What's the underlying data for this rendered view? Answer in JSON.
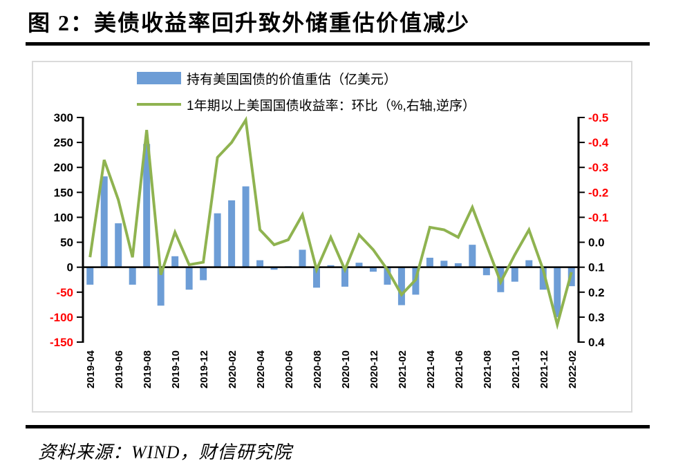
{
  "header": {
    "title": "图 2：美债收益率回升致外储重估价值减少"
  },
  "legend": {
    "bar_label": "持有美国国债的价值重估（亿美元）",
    "line_label": "1年期以上美国国债收益率：环比（%,右轴,逆序）"
  },
  "footer": {
    "source": "资料来源：WIND，财信研究院"
  },
  "colors": {
    "bar": "#6D9DD6",
    "line": "#8FB350",
    "negative_tick": "#FF0000",
    "axis": "#000000",
    "chart_border": "#DADADA"
  },
  "chart_data": {
    "type": "combo",
    "title": "图 2：美债收益率回升致外储重估价值减少",
    "legend_position": "top",
    "grid": false,
    "x_tick_step": 2,
    "categories": [
      "2019-04",
      "2019-05",
      "2019-06",
      "2019-07",
      "2019-08",
      "2019-09",
      "2019-10",
      "2019-11",
      "2019-12",
      "2020-01",
      "2020-02",
      "2020-03",
      "2020-04",
      "2020-05",
      "2020-06",
      "2020-07",
      "2020-08",
      "2020-09",
      "2020-10",
      "2020-11",
      "2020-12",
      "2021-01",
      "2021-02",
      "2021-03",
      "2021-04",
      "2021-05",
      "2021-06",
      "2021-07",
      "2021-08",
      "2021-09",
      "2021-10",
      "2021-11",
      "2021-12",
      "2022-01",
      "2022-02"
    ],
    "series": [
      {
        "name": "持有美国国债的价值重估（亿美元）",
        "type": "bar",
        "axis": "left",
        "color": "#6D9DD6",
        "values": [
          -35,
          182,
          88,
          -35,
          247,
          -77,
          22,
          -45,
          -26,
          108,
          134,
          162,
          14,
          -5,
          2,
          35,
          -41,
          4,
          -39,
          9,
          -9,
          -35,
          -76,
          -55,
          19,
          13,
          8,
          45,
          -16,
          -50,
          -29,
          14,
          -45,
          -100,
          -38
        ]
      },
      {
        "name": "1年期以上美国国债收益率：环比（%,右轴,逆序）",
        "type": "line",
        "axis": "right",
        "color": "#8FB350",
        "values": [
          0.06,
          -0.33,
          -0.17,
          0.06,
          -0.45,
          0.13,
          -0.04,
          0.09,
          0.08,
          -0.34,
          -0.4,
          -0.49,
          -0.05,
          0.01,
          -0.01,
          -0.11,
          0.11,
          -0.02,
          0.11,
          -0.03,
          0.03,
          0.11,
          0.21,
          0.15,
          -0.06,
          -0.05,
          -0.02,
          -0.14,
          0.01,
          0.16,
          0.05,
          -0.05,
          0.11,
          0.33,
          0.12
        ]
      }
    ],
    "left_axis": {
      "max": 300,
      "min": -150,
      "tick_labels": [
        "300",
        "250",
        "200",
        "150",
        "100",
        "50",
        "0",
        "-50",
        "-100",
        "-150"
      ]
    },
    "right_axis": {
      "top": -0.5,
      "bottom": 0.4,
      "reversed": true,
      "tick_labels": [
        "-0.5",
        "-0.4",
        "-0.3",
        "-0.2",
        "-0.1",
        "0.0",
        "0.1",
        "0.2",
        "0.3",
        "0.4"
      ]
    },
    "negative_label_color": "#FF0000"
  }
}
